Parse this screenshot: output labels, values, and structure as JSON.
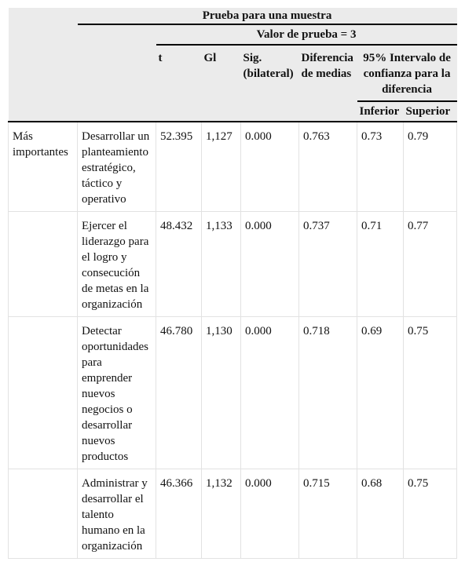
{
  "table": {
    "title": "Prueba para una muestra",
    "test_value": "Valor de prueba = 3",
    "columns": [
      "t",
      "Gl",
      "Sig. (bilateral)",
      "Diferencia de medias"
    ],
    "ci_header": "95% Intervalo de confianza para la diferencia",
    "ci_columns": [
      "Inferior",
      "Superior"
    ],
    "group": "Más importantes",
    "rows": [
      [
        "Desarrollar un planteamiento estratégico, táctico y operativo",
        "52.395",
        "1,127",
        "0.000",
        "0.763",
        "0.73",
        "0.79"
      ],
      [
        "Ejercer el liderazgo para el logro y consecución de metas en la organización",
        "48.432",
        "1,133",
        "0.000",
        "0.737",
        "0.71",
        "0.77"
      ],
      [
        "Detectar oportunidades para emprender nuevos negocios o desarrollar nuevos productos",
        "46.780",
        "1,130",
        "0.000",
        "0.718",
        "0.69",
        "0.75"
      ],
      [
        "Administrar y desarrollar el talento humano en la organización",
        "46.366",
        "1,132",
        "0.000",
        "0.715",
        "0.68",
        "0.75"
      ]
    ]
  }
}
